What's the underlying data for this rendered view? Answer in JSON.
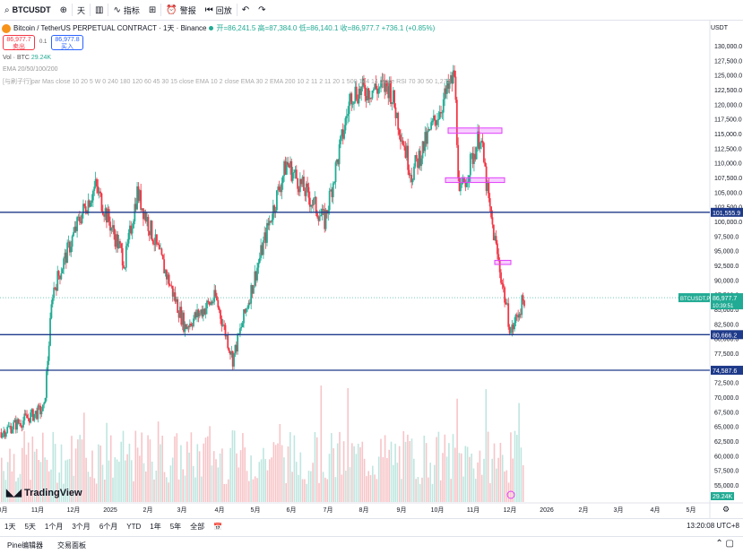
{
  "toolbar": {
    "symbol": "BTCUSDT",
    "interval": "天",
    "indicators_label": "指标",
    "alert_label": "警报",
    "replay_label": "回放"
  },
  "info": {
    "title": "Bitcoin / TetherUS PERPETUAL CONTRACT · 1天 · Binance",
    "open": "开=86,241.5",
    "high": "高=87,384.0",
    "low": "低=86,140.1",
    "close": "收=86,977.7",
    "change": "+736.1 (+0.85%)"
  },
  "trade": {
    "sell_price": "86,977.7",
    "sell_label": "卖出",
    "spread": "0.1",
    "buy_price": "86,977.8",
    "buy_label": "买入"
  },
  "indicators": {
    "vol": "Vol · BTC",
    "vol_value": "29.24K",
    "ema": "EMA 20/50/100/200",
    "multi": "[与刷子行]par Mas close 10 20 5 W 0 240 180 120 60 45 30 15 close EMA 10 2 close EMA 30 2 EMA 200 10 2 11 2 11 20 1 500 144 14 close RSI 70 30 50 1,272"
  },
  "axis": {
    "currency": "USDT",
    "price_labels": [
      "130,000.0",
      "127,500.0",
      "125,000.0",
      "122,500.0",
      "120,000.0",
      "117,500.0",
      "115,000.0",
      "112,500.0",
      "110,000.0",
      "107,500.0",
      "105,000.0",
      "102,500.0",
      "100,000.0",
      "97,500.0",
      "95,000.0",
      "92,500.0",
      "90,000.0",
      "87,500.0",
      "85,000.0",
      "82,500.0",
      "80,000.0",
      "77,500.0",
      "75,000.0",
      "72,500.0",
      "70,000.0",
      "67,500.0",
      "65,000.0",
      "62,500.0",
      "60,000.0",
      "57,500.0",
      "55,000.0"
    ],
    "time_labels": [
      "0月",
      "11月",
      "12月",
      "2025",
      "2月",
      "3月",
      "4月",
      "5月",
      "6月",
      "7月",
      "8月",
      "9月",
      "10月",
      "11月",
      "12月",
      "2026",
      "2月",
      "3月",
      "4月",
      "5月"
    ],
    "levels": [
      {
        "label": "101,555.9",
        "price": 101555.9
      },
      {
        "label": "80,666.2",
        "price": 80666.2
      },
      {
        "label": "74,587.6",
        "price": 74587.6
      }
    ],
    "last_symbol": "BTCUSDT.P",
    "last_price": "86,977.7",
    "countdown": "10:39:51",
    "vol_badge": "29.24K"
  },
  "colors": {
    "up": "#22ab94",
    "down": "#f23645",
    "level_line": "#1e3a8a",
    "zone": "#e040fb"
  },
  "ranges": [
    "1天",
    "5天",
    "1个月",
    "3个月",
    "6个月",
    "YTD",
    "1年",
    "5年",
    "全部"
  ],
  "time_readout": "13:20:08 UTC+8",
  "footer": {
    "pine": "Pine编辑器",
    "panel": "交易面板"
  },
  "logo": "TradingView",
  "chart_data": {
    "type": "candlestick",
    "ylim": [
      52500,
      131250
    ],
    "y_ticks": [
      130000,
      127500,
      125000,
      122500,
      120000,
      117500,
      115000,
      112500,
      110000,
      107500,
      105000,
      102500,
      100000,
      97500,
      95000,
      92500,
      90000,
      87500,
      85000,
      82500,
      80000,
      77500,
      75000,
      72500,
      70000,
      67500,
      65000,
      62500,
      60000,
      57500,
      55000
    ],
    "path_keypoints": [
      {
        "date": "2024-10-01",
        "price": 64000
      },
      {
        "date": "2024-11-05",
        "price": 68000
      },
      {
        "date": "2024-11-12",
        "price": 88000
      },
      {
        "date": "2024-12-05",
        "price": 101000
      },
      {
        "date": "2024-12-17",
        "price": 106000
      },
      {
        "date": "2025-01-10",
        "price": 93000
      },
      {
        "date": "2025-01-20",
        "price": 105000
      },
      {
        "date": "2025-02-28",
        "price": 82000
      },
      {
        "date": "2025-03-25",
        "price": 87000
      },
      {
        "date": "2025-04-08",
        "price": 76500
      },
      {
        "date": "2025-05-08",
        "price": 100000
      },
      {
        "date": "2025-05-22",
        "price": 110000
      },
      {
        "date": "2025-06-22",
        "price": 100000
      },
      {
        "date": "2025-07-14",
        "price": 122000
      },
      {
        "date": "2025-08-14",
        "price": 123000
      },
      {
        "date": "2025-09-01",
        "price": 108000
      },
      {
        "date": "2025-10-06",
        "price": 125000
      },
      {
        "date": "2025-10-10",
        "price": 104000
      },
      {
        "date": "2025-10-27",
        "price": 115000
      },
      {
        "date": "2025-11-04",
        "price": 101500
      },
      {
        "date": "2025-11-21",
        "price": 81000
      },
      {
        "date": "2025-12-02",
        "price": 86977.7
      }
    ],
    "levels": [
      101555.9,
      80666.2,
      74587.6
    ],
    "zones": [
      {
        "from": 115200,
        "to": 115800
      },
      {
        "from": 106800,
        "to": 107300
      },
      {
        "from": 92800,
        "to": 93200
      }
    ],
    "last_price": 86977.7
  }
}
